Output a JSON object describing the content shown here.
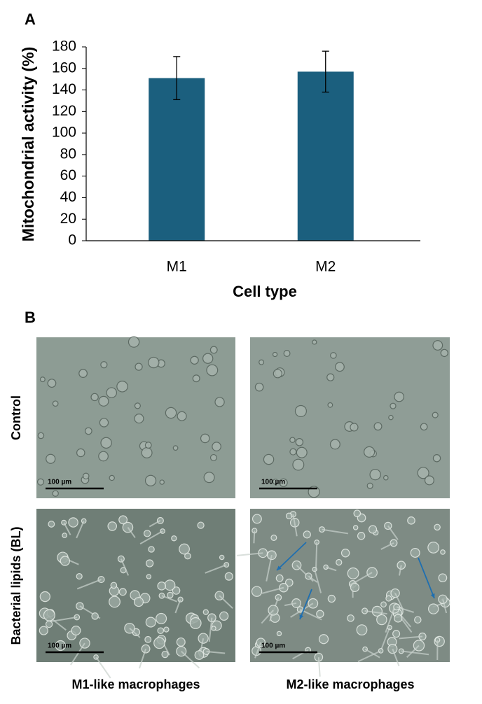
{
  "panel_a_label": "A",
  "chart_data": {
    "type": "bar",
    "categories": [
      "M1",
      "M2"
    ],
    "values": [
      151,
      157
    ],
    "errors": [
      20,
      19
    ],
    "color": "#1b5f7e",
    "ylim": [
      0,
      180
    ],
    "yticks": [
      0,
      20,
      40,
      60,
      80,
      100,
      120,
      140,
      160,
      180
    ],
    "y_label": "Mitochondrial activity (%)",
    "x_label": "Cell type"
  },
  "panel_b": {
    "label": "B",
    "rows": [
      "Control",
      "Bacterial lipids (BL)"
    ],
    "columns": [
      "M1-like macrophages",
      "M2-like macrophages"
    ],
    "scale_bar_labels": [
      "100 µm",
      "100 µm",
      "100 µm",
      "100 µm"
    ]
  }
}
